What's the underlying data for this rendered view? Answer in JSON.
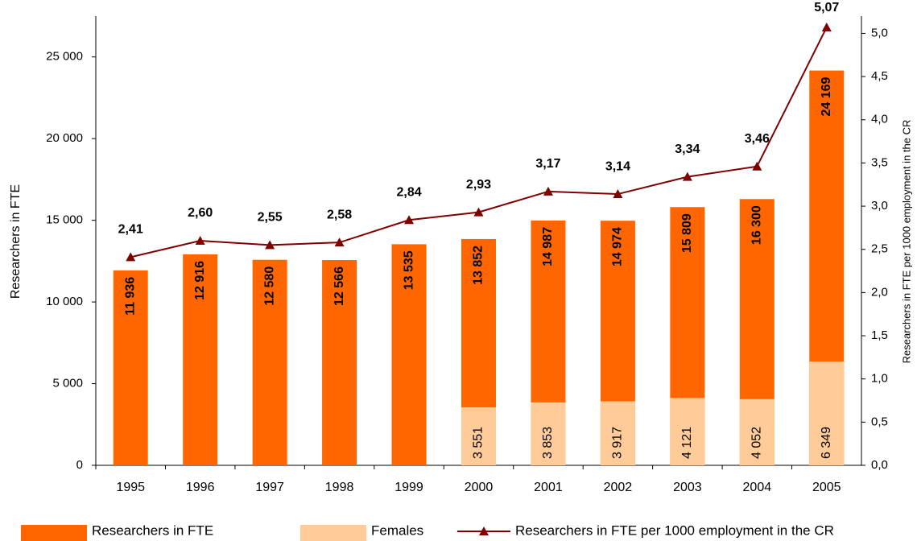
{
  "chart_data": {
    "type": "bar_line",
    "y_label": "Researchers in FTE",
    "y2_label": "Researchers in FTE per 1000 employment in the CR",
    "categories": [
      "1995",
      "1996",
      "1997",
      "1998",
      "1999",
      "2000",
      "2001",
      "2002",
      "2003",
      "2004",
      "2005"
    ],
    "series": [
      {
        "name": "Researchers in FTE",
        "color": "#ff6600",
        "kind": "bar",
        "values": [
          11936,
          12916,
          12580,
          12566,
          13535,
          13852,
          14987,
          14974,
          15809,
          16300,
          24169
        ],
        "value_labels": [
          "11 936",
          "12 916",
          "12 580",
          "12 566",
          "13 535",
          "13 852",
          "14 987",
          "14 974",
          "15 809",
          "16 300",
          "24 169"
        ]
      },
      {
        "name": "Females",
        "color": "#ffcc99",
        "kind": "bar",
        "values": [
          null,
          null,
          null,
          null,
          null,
          3551,
          3853,
          3917,
          4121,
          4052,
          6349
        ],
        "value_labels": [
          null,
          null,
          null,
          null,
          null,
          "3 551",
          "3 853",
          "3 917",
          "4 121",
          "4 052",
          "6 349"
        ]
      },
      {
        "name": "Researchers in FTE per 1000 employment in the CR",
        "color": "#800000",
        "kind": "line",
        "axis": "y2",
        "values": [
          2.41,
          2.6,
          2.55,
          2.58,
          2.84,
          2.93,
          3.17,
          3.14,
          3.34,
          3.46,
          5.07
        ],
        "value_labels": [
          "2,41",
          "2,60",
          "2,55",
          "2,58",
          "2,84",
          "2,93",
          "3,17",
          "3,14",
          "3,34",
          "3,46",
          "5,07"
        ]
      }
    ],
    "ylim": [
      0,
      27500
    ],
    "yticks": [
      0,
      {
        "value": 5000,
        "label": "5 000"
      },
      {
        "value": 10000,
        "label": "10 000"
      },
      {
        "value": 15000,
        "label": "15 000"
      },
      {
        "value": 20000,
        "label": "20 000"
      },
      {
        "value": 25000,
        "label": "25 000"
      }
    ],
    "y2lim": [
      0,
      5.2
    ],
    "y2ticks": [
      {
        "value": 0,
        "label": "0,0"
      },
      {
        "value": 0.5,
        "label": "0,5"
      },
      {
        "value": 1,
        "label": "1,0"
      },
      {
        "value": 1.5,
        "label": "1,5"
      },
      {
        "value": 2,
        "label": "2,0"
      },
      {
        "value": 2.5,
        "label": "2,5"
      },
      {
        "value": 3,
        "label": "3,0"
      },
      {
        "value": 3.5,
        "label": "3,5"
      },
      {
        "value": 4,
        "label": "4,0"
      },
      {
        "value": 4.5,
        "label": "4,5"
      },
      {
        "value": 5,
        "label": "5,0"
      }
    ],
    "legend": "bottom"
  }
}
